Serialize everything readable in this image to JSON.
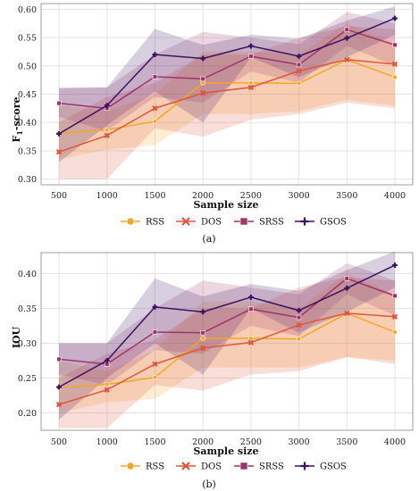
{
  "colors": {
    "RSS": "#f5a623",
    "DOS": "#e0553c",
    "SRSS": "#a0336b",
    "GSOS": "#3b1263",
    "grid": "#e3e3e3",
    "frame": "#888888"
  },
  "chart_data": [
    {
      "type": "line",
      "caption": "(a)",
      "xlabel": "Sample size",
      "ylabel": "F",
      "ylabel_sub": "1",
      "ylabel_suffix": "-score",
      "x": [
        500,
        1000,
        1500,
        2000,
        2500,
        3000,
        3500,
        4000
      ],
      "ylim": [
        0.29,
        0.61
      ],
      "yticks": [
        "0.30",
        "0.35",
        "0.40",
        "0.45",
        "0.50",
        "0.55",
        "0.60"
      ],
      "grid": true,
      "legend": "bottom",
      "series": [
        {
          "name": "RSS",
          "marker": "circle",
          "values": [
            0.381,
            0.387,
            0.402,
            0.47,
            0.47,
            0.469,
            0.511,
            0.48
          ],
          "lower": [
            0.335,
            0.352,
            0.36,
            0.415,
            0.415,
            0.42,
            0.44,
            0.43
          ],
          "upper": [
            0.43,
            0.42,
            0.45,
            0.525,
            0.525,
            0.52,
            0.575,
            0.54
          ]
        },
        {
          "name": "DOS",
          "marker": "x",
          "values": [
            0.348,
            0.377,
            0.425,
            0.452,
            0.462,
            0.491,
            0.511,
            0.503
          ],
          "lower": [
            0.3,
            0.3,
            0.39,
            0.375,
            0.405,
            0.415,
            0.435,
            0.425
          ],
          "upper": [
            0.4,
            0.445,
            0.47,
            0.52,
            0.52,
            0.55,
            0.57,
            0.565
          ]
        },
        {
          "name": "SRSS",
          "marker": "square",
          "values": [
            0.434,
            0.425,
            0.481,
            0.477,
            0.517,
            0.502,
            0.564,
            0.537
          ],
          "lower": [
            0.41,
            0.385,
            0.445,
            0.435,
            0.49,
            0.47,
            0.535,
            0.5
          ],
          "upper": [
            0.462,
            0.462,
            0.52,
            0.56,
            0.55,
            0.538,
            0.595,
            0.575
          ]
        },
        {
          "name": "GSOS",
          "marker": "plus",
          "values": [
            0.38,
            0.43,
            0.52,
            0.513,
            0.535,
            0.517,
            0.549,
            0.584
          ],
          "lower": [
            0.33,
            0.395,
            0.455,
            0.4,
            0.515,
            0.48,
            0.515,
            0.555
          ],
          "upper": [
            0.46,
            0.462,
            0.565,
            0.537,
            0.555,
            0.548,
            0.58,
            0.605
          ]
        }
      ]
    },
    {
      "type": "line",
      "caption": "(b)",
      "xlabel": "Sample size",
      "ylabel": "IOU",
      "ylabel_sub": "",
      "ylabel_suffix": "",
      "x": [
        500,
        1000,
        1500,
        2000,
        2500,
        3000,
        3500,
        4000
      ],
      "ylim": [
        0.175,
        0.43
      ],
      "yticks": [
        "0.20",
        "0.25",
        "0.30",
        "0.35",
        "0.40"
      ],
      "grid": true,
      "legend": "bottom",
      "series": [
        {
          "name": "RSS",
          "marker": "circle",
          "values": [
            0.236,
            0.241,
            0.251,
            0.307,
            0.307,
            0.306,
            0.343,
            0.316
          ],
          "lower": [
            0.2,
            0.215,
            0.22,
            0.265,
            0.265,
            0.265,
            0.28,
            0.275
          ],
          "upper": [
            0.275,
            0.26,
            0.29,
            0.36,
            0.36,
            0.35,
            0.4,
            0.37
          ]
        },
        {
          "name": "DOS",
          "marker": "x",
          "values": [
            0.212,
            0.233,
            0.27,
            0.293,
            0.301,
            0.326,
            0.343,
            0.338
          ],
          "lower": [
            0.178,
            0.178,
            0.24,
            0.232,
            0.255,
            0.26,
            0.28,
            0.27
          ],
          "upper": [
            0.25,
            0.285,
            0.305,
            0.35,
            0.35,
            0.38,
            0.395,
            0.39
          ]
        },
        {
          "name": "SRSS",
          "marker": "square",
          "values": [
            0.277,
            0.27,
            0.316,
            0.315,
            0.349,
            0.337,
            0.393,
            0.368
          ],
          "lower": [
            0.255,
            0.24,
            0.29,
            0.285,
            0.325,
            0.31,
            0.37,
            0.34
          ],
          "upper": [
            0.3,
            0.3,
            0.35,
            0.39,
            0.38,
            0.37,
            0.415,
            0.39
          ]
        },
        {
          "name": "GSOS",
          "marker": "plus",
          "values": [
            0.237,
            0.275,
            0.352,
            0.345,
            0.366,
            0.347,
            0.379,
            0.412
          ],
          "lower": [
            0.19,
            0.25,
            0.3,
            0.255,
            0.35,
            0.315,
            0.345,
            0.38
          ],
          "upper": [
            0.3,
            0.3,
            0.393,
            0.367,
            0.385,
            0.375,
            0.405,
            0.432
          ]
        }
      ]
    }
  ]
}
